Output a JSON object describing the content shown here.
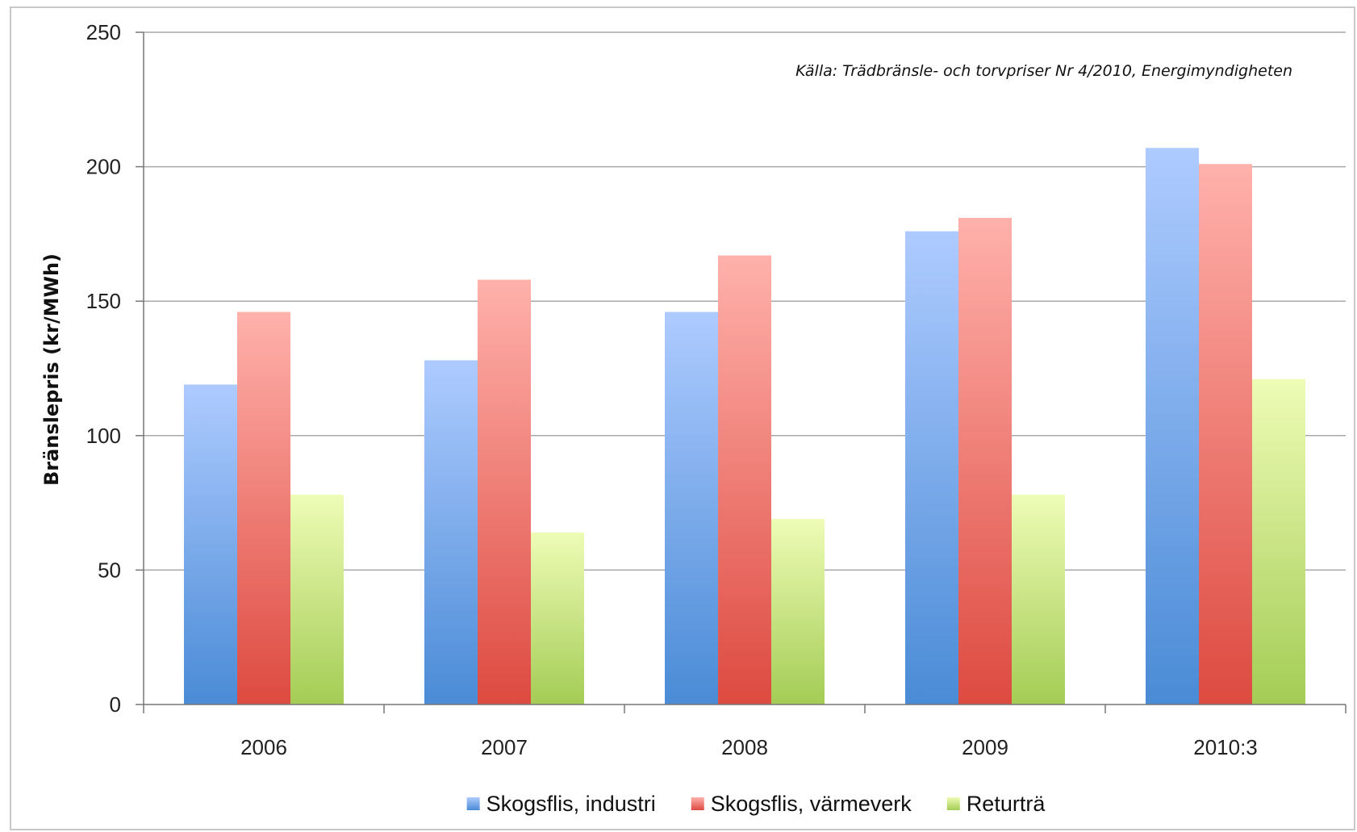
{
  "chart_data": {
    "type": "bar",
    "annotation": "Källa: Trädbränsle- och torvpriser Nr 4/2010,  Energimyndigheten",
    "ylabel": "Bränslepris (kr/MWh)",
    "xlabel": "",
    "categories": [
      "2006",
      "2007",
      "2008",
      "2009",
      "2010:3"
    ],
    "ylim": [
      0,
      250
    ],
    "yticks": [
      0,
      50,
      100,
      150,
      200,
      250
    ],
    "grid": true,
    "legend_position": "bottom",
    "series": [
      {
        "name": "Skogsflis, industri",
        "values": [
          119,
          128,
          146,
          176,
          207
        ],
        "color_top": "#aecbff",
        "color_bottom": "#4a8bd6"
      },
      {
        "name": "Skogsflis, värmeverk",
        "values": [
          146,
          158,
          167,
          181,
          201
        ],
        "color_top": "#ffb1ab",
        "color_bottom": "#dd4a40"
      },
      {
        "name": "Returträ",
        "values": [
          78,
          64,
          69,
          78,
          121
        ],
        "color_top": "#eefcb6",
        "color_bottom": "#a4cc55"
      }
    ]
  }
}
